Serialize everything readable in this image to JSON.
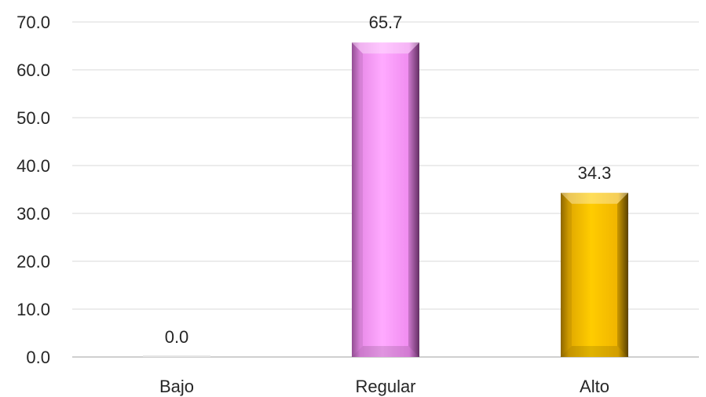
{
  "chart_data": {
    "type": "bar",
    "categories": [
      "Bajo",
      "Regular",
      "Alto"
    ],
    "values": [
      0.0,
      65.7,
      34.3
    ],
    "data_labels": [
      "0.0",
      "65.7",
      "34.3"
    ],
    "ylim": [
      0,
      70
    ],
    "yticks": [
      "0.0",
      "10.0",
      "20.0",
      "30.0",
      "40.0",
      "50.0",
      "60.0",
      "70.0"
    ],
    "grid": true,
    "legend": "none",
    "title": "",
    "xlabel": "",
    "ylabel": "",
    "bar_colors": [
      "#d9d9d9",
      "#ff99ff",
      "#ffc000"
    ]
  }
}
